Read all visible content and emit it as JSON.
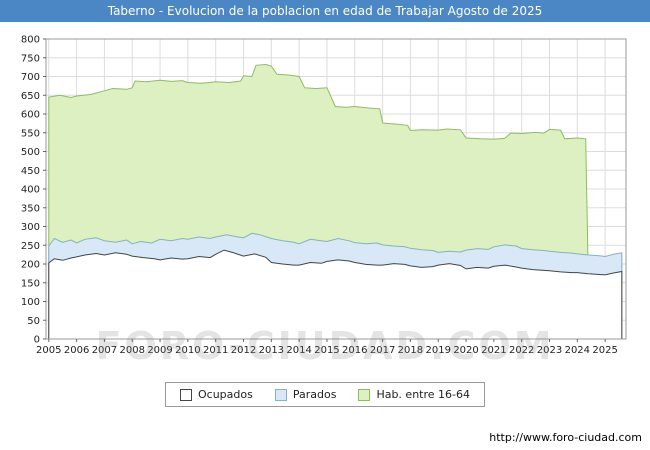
{
  "title": "Taberno - Evolucion de la poblacion en edad de Trabajar Agosto de 2025",
  "colors": {
    "titlebar": "#4c87c5",
    "titlebar_text": "#ffffff",
    "grid": "#dddddd",
    "plot_border": "#999999"
  },
  "watermark": "FORO-CIUDAD.COM",
  "footer": {
    "url": "http://www.foro-ciudad.com"
  },
  "legend": {
    "items": [
      {
        "label": "Ocupados",
        "series": 2
      },
      {
        "label": "Parados",
        "series": 1
      },
      {
        "label": "Hab. entre 16-64",
        "series": 0
      }
    ]
  },
  "chart_data": {
    "type": "area",
    "title": "Taberno - Evolucion de la poblacion en edad de Trabajar Agosto de 2025",
    "xlabel": "",
    "ylabel": "",
    "xlim": [
      2004.9,
      2025.75
    ],
    "ylim": [
      0,
      800
    ],
    "ytick_step": 50,
    "xticks": [
      2005,
      2006,
      2007,
      2008,
      2009,
      2010,
      2011,
      2012,
      2013,
      2014,
      2015,
      2016,
      2017,
      2018,
      2019,
      2020,
      2021,
      2022,
      2023,
      2024,
      2025
    ],
    "grid": true,
    "legend_position": "bottom",
    "series": [
      {
        "name": "Hab. entre 16-64",
        "fill": "#dcf0c2",
        "stroke": "#8fbe56",
        "points": [
          [
            2005.0,
            645
          ],
          [
            2005.4,
            650
          ],
          [
            2005.8,
            644
          ],
          [
            2006.0,
            648
          ],
          [
            2006.5,
            652
          ],
          [
            2007.0,
            662
          ],
          [
            2007.3,
            668
          ],
          [
            2007.8,
            666
          ],
          [
            2008.0,
            670
          ],
          [
            2008.1,
            688
          ],
          [
            2008.5,
            686
          ],
          [
            2009.0,
            690
          ],
          [
            2009.4,
            687
          ],
          [
            2009.8,
            689
          ],
          [
            2010.0,
            684
          ],
          [
            2010.5,
            682
          ],
          [
            2011.0,
            686
          ],
          [
            2011.5,
            684
          ],
          [
            2011.9,
            688
          ],
          [
            2012.0,
            702
          ],
          [
            2012.3,
            700
          ],
          [
            2012.45,
            730
          ],
          [
            2012.8,
            732
          ],
          [
            2013.0,
            728
          ],
          [
            2013.2,
            706
          ],
          [
            2013.6,
            704
          ],
          [
            2014.0,
            700
          ],
          [
            2014.2,
            670
          ],
          [
            2014.6,
            668
          ],
          [
            2015.0,
            670
          ],
          [
            2015.3,
            620
          ],
          [
            2015.7,
            618
          ],
          [
            2016.0,
            620
          ],
          [
            2016.5,
            616
          ],
          [
            2016.9,
            614
          ],
          [
            2017.0,
            576
          ],
          [
            2017.5,
            573
          ],
          [
            2017.9,
            570
          ],
          [
            2018.0,
            556
          ],
          [
            2018.4,
            558
          ],
          [
            2019.0,
            557
          ],
          [
            2019.3,
            560
          ],
          [
            2019.8,
            558
          ],
          [
            2020.0,
            536
          ],
          [
            2020.5,
            534
          ],
          [
            2021.0,
            533
          ],
          [
            2021.4,
            535
          ],
          [
            2021.6,
            549
          ],
          [
            2022.0,
            548
          ],
          [
            2022.5,
            551
          ],
          [
            2022.8,
            549
          ],
          [
            2023.0,
            559
          ],
          [
            2023.4,
            557
          ],
          [
            2023.55,
            534
          ],
          [
            2024.0,
            536
          ],
          [
            2024.3,
            534
          ],
          [
            2024.38,
            222
          ],
          [
            2024.7,
            220
          ],
          [
            2025.0,
            218
          ],
          [
            2025.3,
            222
          ],
          [
            2025.6,
            224
          ]
        ]
      },
      {
        "name": "Parados",
        "fill": "#d9e8f7",
        "stroke": "#85aed1",
        "points": [
          [
            2005.0,
            248
          ],
          [
            2005.2,
            268
          ],
          [
            2005.5,
            258
          ],
          [
            2005.8,
            264
          ],
          [
            2006.0,
            256
          ],
          [
            2006.3,
            266
          ],
          [
            2006.7,
            270
          ],
          [
            2007.0,
            262
          ],
          [
            2007.4,
            258
          ],
          [
            2007.8,
            264
          ],
          [
            2008.0,
            254
          ],
          [
            2008.3,
            260
          ],
          [
            2008.7,
            256
          ],
          [
            2009.0,
            266
          ],
          [
            2009.4,
            262
          ],
          [
            2009.8,
            268
          ],
          [
            2010.0,
            266
          ],
          [
            2010.4,
            272
          ],
          [
            2010.8,
            268
          ],
          [
            2011.0,
            272
          ],
          [
            2011.4,
            278
          ],
          [
            2011.8,
            272
          ],
          [
            2012.0,
            270
          ],
          [
            2012.3,
            282
          ],
          [
            2012.6,
            278
          ],
          [
            2013.0,
            268
          ],
          [
            2013.4,
            262
          ],
          [
            2013.8,
            258
          ],
          [
            2014.0,
            254
          ],
          [
            2014.4,
            266
          ],
          [
            2014.8,
            262
          ],
          [
            2015.0,
            260
          ],
          [
            2015.4,
            268
          ],
          [
            2015.8,
            262
          ],
          [
            2016.0,
            257
          ],
          [
            2016.4,
            254
          ],
          [
            2016.8,
            256
          ],
          [
            2017.0,
            251
          ],
          [
            2017.4,
            248
          ],
          [
            2017.8,
            246
          ],
          [
            2018.0,
            242
          ],
          [
            2018.4,
            238
          ],
          [
            2018.8,
            236
          ],
          [
            2019.0,
            231
          ],
          [
            2019.4,
            234
          ],
          [
            2019.8,
            232
          ],
          [
            2020.0,
            237
          ],
          [
            2020.4,
            241
          ],
          [
            2020.8,
            239
          ],
          [
            2021.0,
            246
          ],
          [
            2021.4,
            251
          ],
          [
            2021.8,
            248
          ],
          [
            2022.0,
            241
          ],
          [
            2022.4,
            238
          ],
          [
            2022.8,
            236
          ],
          [
            2023.0,
            234
          ],
          [
            2023.4,
            231
          ],
          [
            2023.8,
            229
          ],
          [
            2024.0,
            227
          ],
          [
            2024.4,
            224
          ],
          [
            2024.8,
            222
          ],
          [
            2025.0,
            220
          ],
          [
            2025.3,
            226
          ],
          [
            2025.6,
            230
          ]
        ]
      },
      {
        "name": "Ocupados",
        "fill": "#ffffff",
        "stroke": "#444444",
        "points": [
          [
            2005.0,
            203
          ],
          [
            2005.2,
            214
          ],
          [
            2005.5,
            210
          ],
          [
            2005.8,
            216
          ],
          [
            2006.0,
            219
          ],
          [
            2006.3,
            224
          ],
          [
            2006.7,
            228
          ],
          [
            2007.0,
            224
          ],
          [
            2007.4,
            230
          ],
          [
            2007.8,
            226
          ],
          [
            2008.0,
            221
          ],
          [
            2008.4,
            217
          ],
          [
            2008.8,
            214
          ],
          [
            2009.0,
            211
          ],
          [
            2009.4,
            216
          ],
          [
            2009.8,
            213
          ],
          [
            2010.0,
            214
          ],
          [
            2010.4,
            220
          ],
          [
            2010.8,
            217
          ],
          [
            2011.0,
            226
          ],
          [
            2011.3,
            237
          ],
          [
            2011.6,
            231
          ],
          [
            2012.0,
            221
          ],
          [
            2012.4,
            227
          ],
          [
            2012.8,
            218
          ],
          [
            2013.0,
            204
          ],
          [
            2013.4,
            200
          ],
          [
            2013.8,
            197
          ],
          [
            2014.0,
            197
          ],
          [
            2014.4,
            204
          ],
          [
            2014.8,
            202
          ],
          [
            2015.0,
            207
          ],
          [
            2015.4,
            211
          ],
          [
            2015.8,
            208
          ],
          [
            2016.0,
            204
          ],
          [
            2016.4,
            199
          ],
          [
            2016.8,
            197
          ],
          [
            2017.0,
            197
          ],
          [
            2017.4,
            201
          ],
          [
            2017.8,
            199
          ],
          [
            2018.0,
            195
          ],
          [
            2018.4,
            191
          ],
          [
            2018.8,
            193
          ],
          [
            2019.0,
            197
          ],
          [
            2019.4,
            201
          ],
          [
            2019.8,
            196
          ],
          [
            2020.0,
            187
          ],
          [
            2020.4,
            191
          ],
          [
            2020.8,
            189
          ],
          [
            2021.0,
            194
          ],
          [
            2021.4,
            197
          ],
          [
            2021.8,
            192
          ],
          [
            2022.0,
            189
          ],
          [
            2022.4,
            185
          ],
          [
            2022.8,
            183
          ],
          [
            2023.0,
            182
          ],
          [
            2023.4,
            179
          ],
          [
            2023.8,
            177
          ],
          [
            2024.0,
            177
          ],
          [
            2024.4,
            174
          ],
          [
            2024.8,
            172
          ],
          [
            2025.0,
            171
          ],
          [
            2025.3,
            176
          ],
          [
            2025.6,
            180
          ]
        ]
      }
    ]
  }
}
